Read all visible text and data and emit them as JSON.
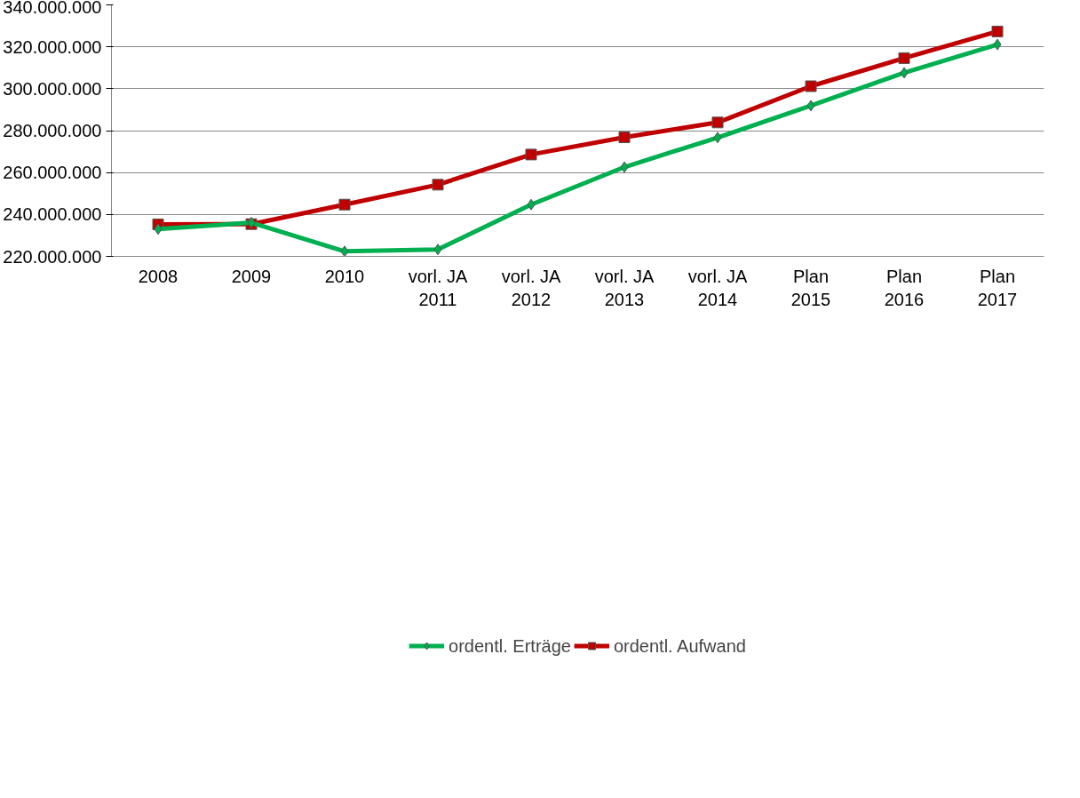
{
  "chart_data": {
    "type": "line",
    "categories": [
      "2008",
      "2009",
      "2010",
      "vorl. JA\n2011",
      "vorl. JA\n2012",
      "vorl. JA\n2013",
      "vorl. JA\n2014",
      "Plan\n2015",
      "Plan\n2016",
      "Plan\n2017"
    ],
    "series": [
      {
        "name": "ordentl. Erträge",
        "color": "#00b050",
        "marker": "diamond",
        "values": [
          233000000,
          236100000,
          222400000,
          223300000,
          244700000,
          262600000,
          276700000,
          291900000,
          307600000,
          321100000
        ]
      },
      {
        "name": "ordentl. Aufwand",
        "color": "#c00000",
        "marker": "square",
        "values": [
          235300000,
          235400000,
          244700000,
          254200000,
          268600000,
          276800000,
          283900000,
          301200000,
          314600000,
          327300000
        ]
      }
    ],
    "ylim": [
      220000000,
      340000000
    ],
    "yticks": [
      {
        "value": 220000000,
        "label": "220.000.000"
      },
      {
        "value": 240000000,
        "label": "240.000.000"
      },
      {
        "value": 260000000,
        "label": "260.000.000"
      },
      {
        "value": 280000000,
        "label": "280.000.000"
      },
      {
        "value": 300000000,
        "label": "300.000.000"
      },
      {
        "value": 320000000,
        "label": "320.000.000"
      },
      {
        "value": 340000000,
        "label": "340.000.000"
      }
    ],
    "grid": "y",
    "legend": "bottom",
    "line_style": "solid"
  }
}
